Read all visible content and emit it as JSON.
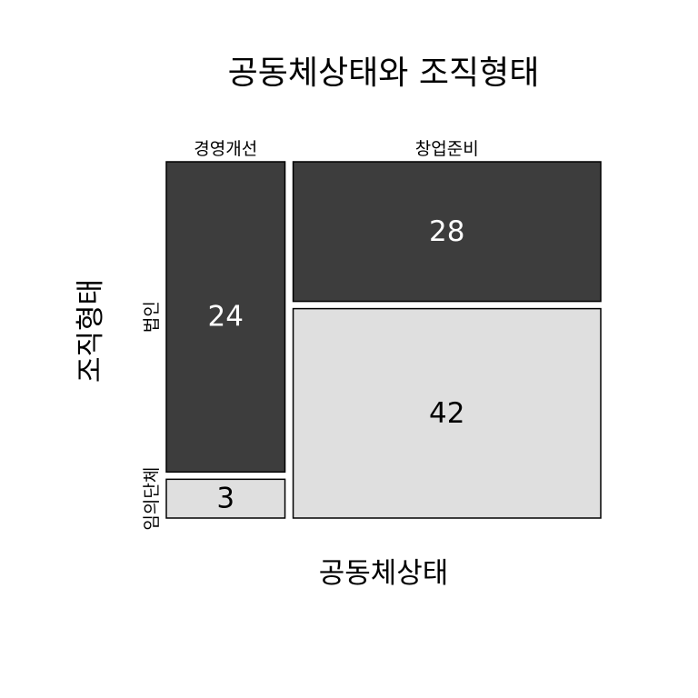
{
  "chart_data": {
    "type": "mosaic",
    "title": "공동체상태와 조직형태",
    "xlabel": "공동체상태",
    "ylabel": "조직형태",
    "x_categories": [
      "경영개선",
      "창업준비"
    ],
    "y_categories": [
      "법인",
      "임의단체"
    ],
    "cells": [
      {
        "x": "경영개선",
        "y": "법인",
        "value": 24,
        "fill": "#3d3d3d",
        "text_color": "#ffffff"
      },
      {
        "x": "경영개선",
        "y": "임의단체",
        "value": 3,
        "fill": "#dfdfdf",
        "text_color": "#000000"
      },
      {
        "x": "창업준비",
        "y": "법인",
        "value": 28,
        "fill": "#3d3d3d",
        "text_color": "#ffffff"
      },
      {
        "x": "창업준비",
        "y": "임의단체",
        "value": 42,
        "fill": "#dfdfdf",
        "text_color": "#000000"
      }
    ],
    "colors": {
      "법인": "#3d3d3d",
      "임의단체": "#dfdfdf"
    }
  }
}
